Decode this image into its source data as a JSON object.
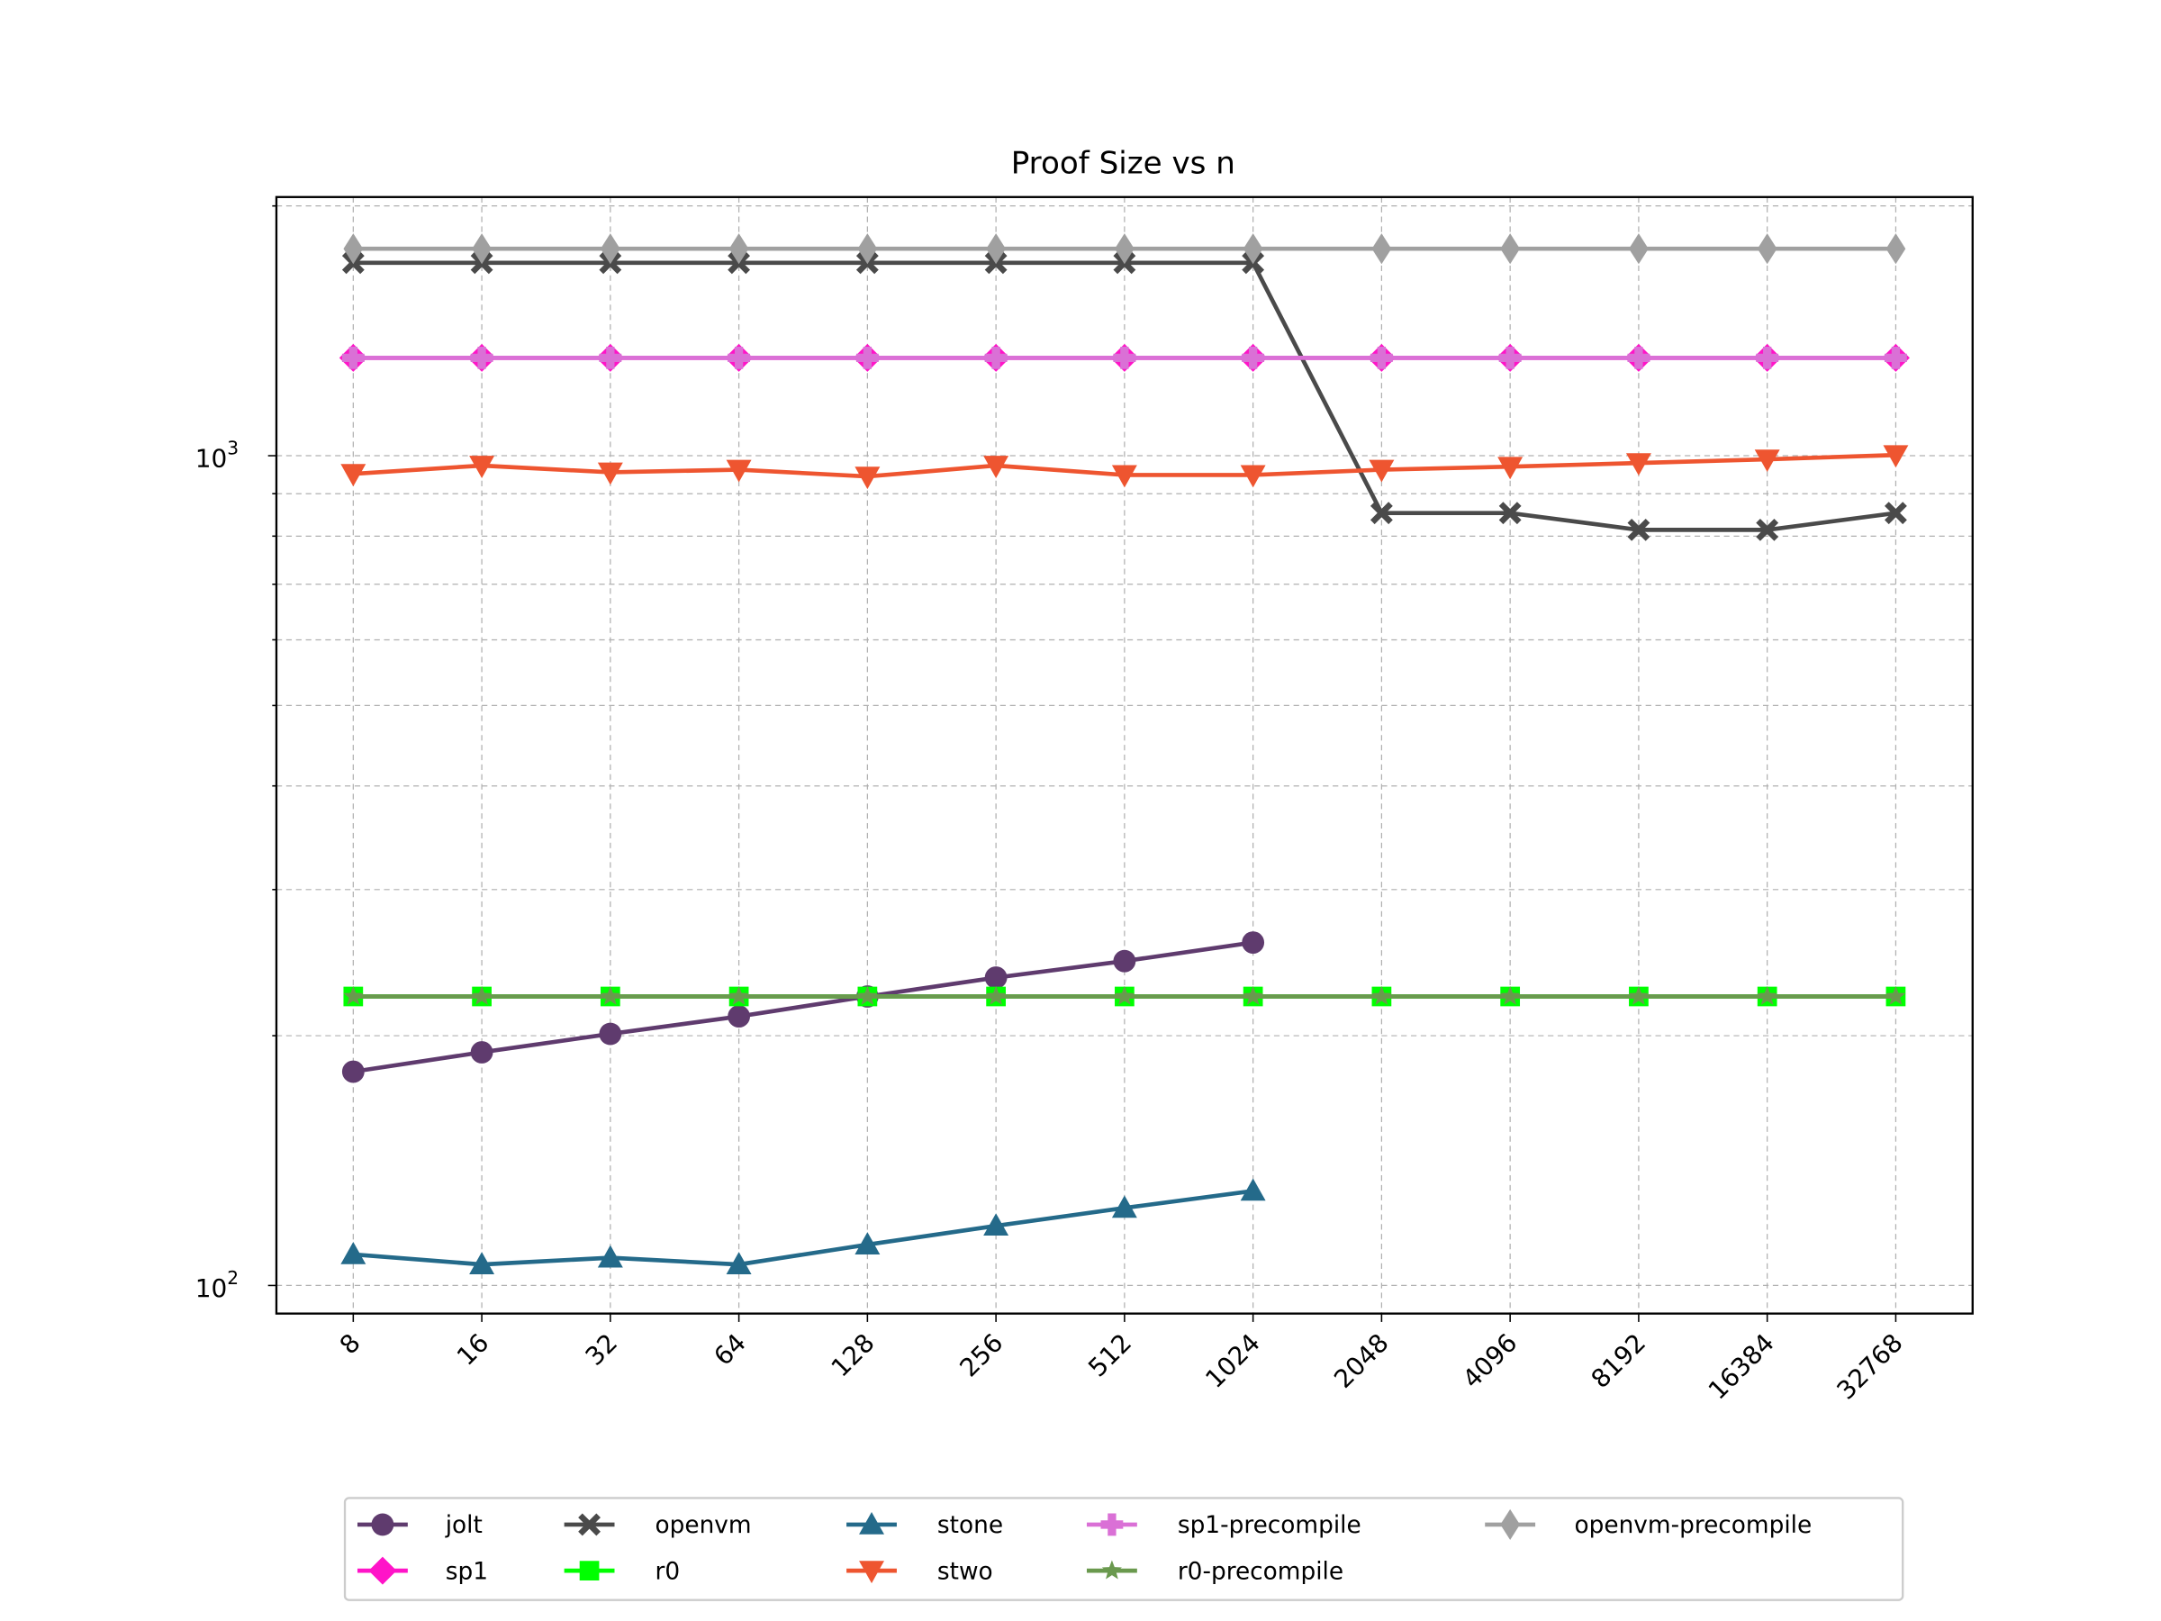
{
  "chart_data": {
    "type": "line",
    "title": "Proof Size vs n",
    "xlabel": "",
    "ylabel": "",
    "yscale": "log",
    "ylim": [
      92.5,
      2050
    ],
    "grid": true,
    "legend_placement": "bottom-center (below axes)",
    "x": [
      "8",
      "16",
      "32",
      "64",
      "128",
      "256",
      "512",
      "1024",
      "2048",
      "4096",
      "8192",
      "16384",
      "32768"
    ],
    "y_tick_labels": [
      {
        "value": 100,
        "base": "10",
        "exp": "2"
      },
      {
        "value": 1000,
        "base": "10",
        "exp": "3"
      }
    ],
    "series": [
      {
        "name": "jolt",
        "color": "#5f3b6e",
        "marker": "circle",
        "values": [
          181,
          191,
          201,
          211,
          223,
          235,
          246,
          259,
          null,
          null,
          null,
          null,
          null
        ]
      },
      {
        "name": "sp1",
        "color": "#ff14c8",
        "marker": "diamond",
        "values": [
          1312,
          1312,
          1312,
          1312,
          1312,
          1312,
          1312,
          1312,
          1312,
          1312,
          1312,
          1312,
          1312
        ]
      },
      {
        "name": "openvm",
        "color": "#4a4a4a",
        "marker": "x-filled",
        "values": [
          1708,
          1708,
          1708,
          1708,
          1708,
          1708,
          1708,
          1708,
          853,
          853,
          814,
          814,
          853
        ]
      },
      {
        "name": "r0",
        "color": "#00ff00",
        "marker": "square",
        "values": [
          223,
          223,
          223,
          223,
          223,
          223,
          223,
          223,
          223,
          223,
          223,
          223,
          223
        ]
      },
      {
        "name": "stone",
        "color": "#246a8a",
        "marker": "triangle-up",
        "values": [
          109,
          106,
          108,
          106,
          112,
          118,
          124,
          130,
          null,
          null,
          null,
          null,
          null
        ]
      },
      {
        "name": "stwo",
        "color": "#ee5530",
        "marker": "triangle-down",
        "values": [
          951,
          973,
          955,
          962,
          944,
          973,
          948,
          948,
          962,
          970,
          980,
          990,
          1002
        ]
      },
      {
        "name": "sp1-precompile",
        "color": "#da70d6",
        "marker": "plus-filled",
        "values": [
          1312,
          1312,
          1312,
          1312,
          1312,
          1312,
          1312,
          1312,
          1312,
          1312,
          1312,
          1312,
          1312
        ]
      },
      {
        "name": "r0-precompile",
        "color": "#6a994e",
        "marker": "star",
        "values": [
          223,
          223,
          223,
          223,
          223,
          223,
          223,
          223,
          223,
          223,
          223,
          223,
          223
        ]
      },
      {
        "name": "openvm-precompile",
        "color": "#a0a0a0",
        "marker": "thin-diamond",
        "values": [
          1776,
          1776,
          1776,
          1776,
          1776,
          1776,
          1776,
          1776,
          1776,
          1776,
          1776,
          1776,
          1776
        ]
      }
    ]
  }
}
